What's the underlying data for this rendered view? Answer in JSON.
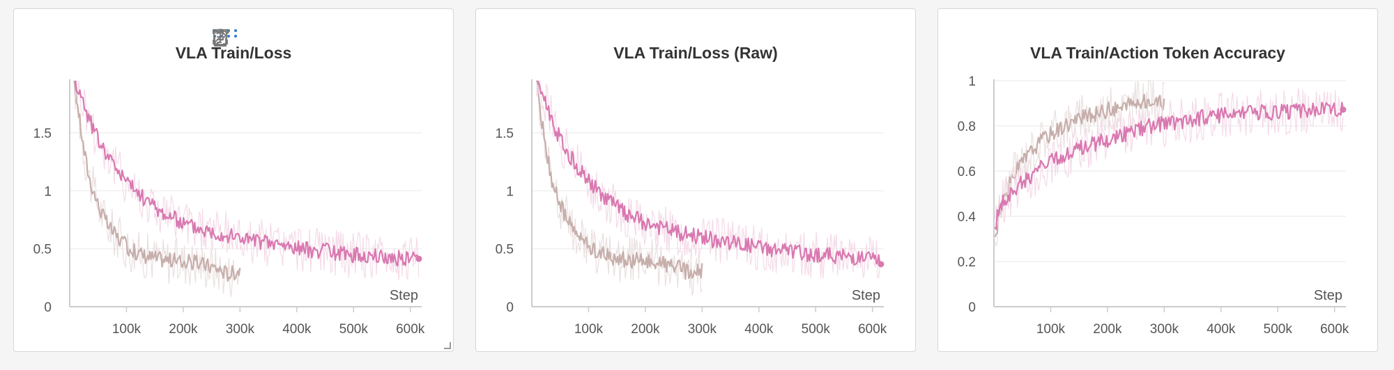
{
  "toolbar": {
    "icons": [
      "drag-handle-icon",
      "clipboard-icon",
      "share-icon",
      "edit-icon",
      "fullscreen-icon",
      "more-icon"
    ],
    "accent": "#2e7bcf",
    "icon_color": "#777777"
  },
  "colors": {
    "pink": "#d978b0",
    "pink_band": "#f3d6e6",
    "tan": "#c6aeaa",
    "tan_band": "#e8dcdc",
    "axis": "#cccccc",
    "grid": "#ececec"
  },
  "chart_data": [
    {
      "type": "line",
      "title": "VLA Train/Loss",
      "xlabel": "Step",
      "ylabel": "",
      "xlim": [
        0,
        620000
      ],
      "ylim": [
        0,
        1.95
      ],
      "x_ticks": [
        100000,
        200000,
        300000,
        400000,
        500000,
        600000
      ],
      "x_tick_labels": [
        "100k",
        "200k",
        "300k",
        "400k",
        "500k",
        "600k"
      ],
      "y_ticks": [
        0,
        0.5,
        1,
        1.5
      ],
      "y_tick_labels": [
        "0",
        "0.5",
        "1",
        "1.5"
      ],
      "grid": true,
      "series": [
        {
          "color": "#c6aeaa",
          "x": [
            8000,
            15000,
            25000,
            35000,
            50000,
            65000,
            80000,
            100000,
            120000,
            140000,
            160000,
            180000,
            200000,
            220000,
            240000,
            260000,
            280000,
            300000
          ],
          "y": [
            1.95,
            1.7,
            1.35,
            1.1,
            0.88,
            0.72,
            0.62,
            0.52,
            0.46,
            0.43,
            0.41,
            0.4,
            0.39,
            0.38,
            0.36,
            0.33,
            0.28,
            0.32
          ]
        },
        {
          "color": "#d978b0",
          "x": [
            10000,
            25000,
            40000,
            55000,
            70000,
            85000,
            100000,
            120000,
            140000,
            160000,
            180000,
            200000,
            225000,
            250000,
            275000,
            300000,
            325000,
            350000,
            375000,
            400000,
            425000,
            450000,
            475000,
            500000,
            525000,
            550000,
            575000,
            600000,
            615000
          ],
          "y": [
            1.95,
            1.75,
            1.55,
            1.4,
            1.28,
            1.18,
            1.08,
            0.98,
            0.9,
            0.82,
            0.77,
            0.72,
            0.68,
            0.65,
            0.62,
            0.6,
            0.57,
            0.55,
            0.53,
            0.51,
            0.49,
            0.48,
            0.46,
            0.45,
            0.44,
            0.43,
            0.42,
            0.42,
            0.43
          ]
        }
      ]
    },
    {
      "type": "line",
      "title": "VLA Train/Loss (Raw)",
      "xlabel": "Step",
      "ylabel": "",
      "xlim": [
        0,
        620000
      ],
      "ylim": [
        0,
        1.95
      ],
      "x_ticks": [
        100000,
        200000,
        300000,
        400000,
        500000,
        600000
      ],
      "x_tick_labels": [
        "100k",
        "200k",
        "300k",
        "400k",
        "500k",
        "600k"
      ],
      "y_ticks": [
        0,
        0.5,
        1,
        1.5
      ],
      "y_tick_labels": [
        "0",
        "0.5",
        "1",
        "1.5"
      ],
      "grid": true,
      "series": [
        {
          "color": "#c6aeaa",
          "x": [
            8000,
            15000,
            25000,
            35000,
            50000,
            65000,
            80000,
            100000,
            120000,
            140000,
            160000,
            180000,
            200000,
            220000,
            240000,
            260000,
            280000,
            300000
          ],
          "y": [
            1.95,
            1.7,
            1.35,
            1.1,
            0.88,
            0.72,
            0.62,
            0.52,
            0.46,
            0.43,
            0.41,
            0.4,
            0.39,
            0.38,
            0.36,
            0.33,
            0.28,
            0.31
          ]
        },
        {
          "color": "#d978b0",
          "x": [
            10000,
            25000,
            40000,
            55000,
            70000,
            85000,
            100000,
            120000,
            140000,
            160000,
            180000,
            200000,
            225000,
            250000,
            275000,
            300000,
            325000,
            350000,
            375000,
            400000,
            425000,
            450000,
            475000,
            500000,
            525000,
            550000,
            575000,
            600000,
            615000
          ],
          "y": [
            1.95,
            1.75,
            1.55,
            1.4,
            1.28,
            1.18,
            1.08,
            0.98,
            0.9,
            0.82,
            0.77,
            0.72,
            0.68,
            0.65,
            0.62,
            0.6,
            0.57,
            0.55,
            0.53,
            0.51,
            0.49,
            0.48,
            0.46,
            0.45,
            0.44,
            0.43,
            0.42,
            0.41,
            0.39
          ]
        }
      ]
    },
    {
      "type": "line",
      "title": "VLA Train/Action Token Accuracy",
      "xlabel": "Step",
      "ylabel": "",
      "xlim": [
        0,
        620000
      ],
      "ylim": [
        0,
        1
      ],
      "x_ticks": [
        100000,
        200000,
        300000,
        400000,
        500000,
        600000
      ],
      "x_tick_labels": [
        "100k",
        "200k",
        "300k",
        "400k",
        "500k",
        "600k"
      ],
      "y_ticks": [
        0,
        0.2,
        0.4,
        0.6,
        0.8,
        1
      ],
      "y_tick_labels": [
        "0",
        "0.2",
        "0.4",
        "0.6",
        "0.8",
        "1"
      ],
      "grid": true,
      "series": [
        {
          "color": "#c6aeaa",
          "x": [
            2000,
            10000,
            20000,
            35000,
            50000,
            70000,
            90000,
            110000,
            130000,
            150000,
            175000,
            200000,
            225000,
            250000,
            270000,
            285000,
            300000
          ],
          "y": [
            0.3,
            0.42,
            0.5,
            0.58,
            0.64,
            0.7,
            0.75,
            0.78,
            0.81,
            0.83,
            0.85,
            0.87,
            0.88,
            0.9,
            0.91,
            0.9,
            0.9
          ]
        },
        {
          "color": "#d978b0",
          "x": [
            2000,
            10000,
            25000,
            40000,
            60000,
            80000,
            100000,
            125000,
            150000,
            175000,
            200000,
            225000,
            250000,
            275000,
            300000,
            325000,
            350000,
            375000,
            400000,
            425000,
            450000,
            475000,
            500000,
            525000,
            550000,
            575000,
            600000,
            615000
          ],
          "y": [
            0.35,
            0.44,
            0.49,
            0.53,
            0.57,
            0.61,
            0.64,
            0.67,
            0.7,
            0.72,
            0.74,
            0.76,
            0.78,
            0.8,
            0.81,
            0.82,
            0.83,
            0.84,
            0.845,
            0.85,
            0.855,
            0.86,
            0.86,
            0.865,
            0.87,
            0.87,
            0.87,
            0.87
          ]
        }
      ]
    }
  ]
}
